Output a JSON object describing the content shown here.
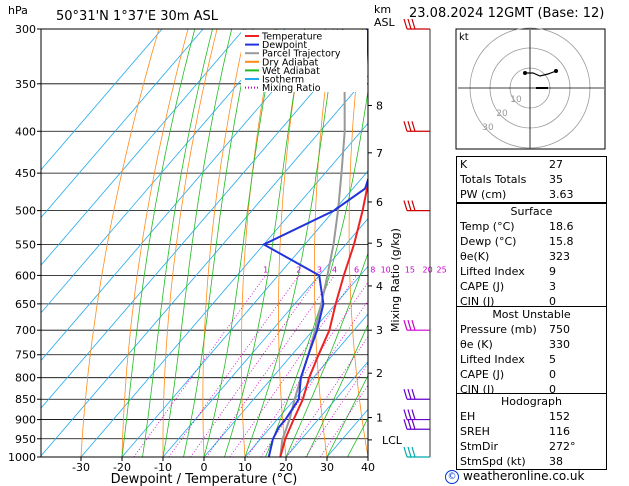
{
  "header": {
    "pressure_unit": "hPa",
    "location": "50°31'N  1°37'E  30m  ASL",
    "height_unit_line1": "km",
    "height_unit_line2": "ASL",
    "datetime": "23.08.2024  12GMT  (Base: 12)"
  },
  "legend": [
    "Temperature",
    "Dewpoint",
    "Parcel Trajectory",
    "Dry Adiabat",
    "Wet Adiabat",
    "Isotherm",
    "Mixing Ratio"
  ],
  "colors": {
    "temperature": "#ee2222",
    "dewpoint": "#2233dd",
    "parcel": "#999999",
    "dry_adiabat": "#ff8c1a",
    "wet_adiabat": "#22bb22",
    "isotherm": "#22aaee",
    "mixing_ratio": "#cc00cc",
    "wind": "#cc0000"
  },
  "chart_data": {
    "type": "skew-t",
    "xlabel": "Dewpoint / Temperature (°C)",
    "ylabel_right": "Mixing Ratio (g/kg)",
    "pressure_levels": [
      300,
      350,
      400,
      450,
      500,
      550,
      600,
      650,
      700,
      750,
      800,
      850,
      900,
      950,
      1000
    ],
    "temperature_ticks": [
      -30,
      -20,
      -10,
      0,
      10,
      20,
      30,
      40
    ],
    "height_ticks": [
      {
        "km": "8",
        "p": 372
      },
      {
        "km": "7",
        "p": 425
      },
      {
        "km": "6",
        "p": 488
      },
      {
        "km": "5",
        "p": 548
      },
      {
        "km": "4",
        "p": 618
      },
      {
        "km": "3",
        "p": 700
      },
      {
        "km": "2",
        "p": 790
      },
      {
        "km": "1",
        "p": 895
      }
    ],
    "lcl_label": "LCL",
    "lcl_pressure": 953,
    "mixing_ratio_labels": [
      {
        "text": "1",
        "w": 1
      },
      {
        "text": "2",
        "w": 2
      },
      {
        "text": "3",
        "w": 3
      },
      {
        "text": "4",
        "w": 4
      },
      {
        "text": "6",
        "w": 6
      },
      {
        "text": "8",
        "w": 8
      },
      {
        "text": "10",
        "w": 10
      },
      {
        "text": "15",
        "w": 15
      },
      {
        "text": "20",
        "w": 20
      },
      {
        "text": "25",
        "w": 25
      }
    ],
    "temperature_profile": [
      [
        1000,
        18.6
      ],
      [
        950,
        16
      ],
      [
        900,
        14
      ],
      [
        850,
        12
      ],
      [
        800,
        9
      ],
      [
        750,
        6.5
      ],
      [
        700,
        4
      ],
      [
        650,
        0
      ],
      [
        600,
        -4
      ],
      [
        550,
        -8
      ],
      [
        500,
        -13
      ],
      [
        450,
        -19
      ],
      [
        400,
        -27
      ],
      [
        350,
        -36
      ],
      [
        300,
        -46
      ]
    ],
    "dewpoint_profile": [
      [
        1000,
        15.8
      ],
      [
        950,
        13
      ],
      [
        920,
        12
      ],
      [
        900,
        12
      ],
      [
        850,
        11
      ],
      [
        800,
        7
      ],
      [
        750,
        4
      ],
      [
        700,
        1
      ],
      [
        650,
        -3
      ],
      [
        600,
        -10
      ],
      [
        550,
        -30
      ],
      [
        500,
        -20
      ],
      [
        470,
        -17
      ],
      [
        450,
        -19
      ],
      [
        400,
        -28
      ],
      [
        350,
        -38
      ],
      [
        300,
        -50
      ]
    ],
    "parcel_profile": [
      [
        1000,
        18.6
      ],
      [
        953,
        15.5
      ],
      [
        900,
        13
      ],
      [
        850,
        10
      ],
      [
        800,
        7
      ],
      [
        750,
        4
      ],
      [
        700,
        0.5
      ],
      [
        650,
        -3.5
      ],
      [
        600,
        -8
      ],
      [
        550,
        -13
      ],
      [
        500,
        -19
      ],
      [
        450,
        -26
      ],
      [
        400,
        -34
      ],
      [
        350,
        -44
      ],
      [
        300,
        -56
      ]
    ],
    "wind_barbs": [
      {
        "p": 300,
        "color": "#cc0000"
      },
      {
        "p": 400,
        "color": "#cc0000"
      },
      {
        "p": 500,
        "color": "#cc0000"
      },
      {
        "p": 700,
        "color": "#cc00cc"
      },
      {
        "p": 850,
        "color": "#6600cc"
      },
      {
        "p": 900,
        "color": "#6600cc"
      },
      {
        "p": 925,
        "color": "#6600cc"
      },
      {
        "p": 1000,
        "color": "#00aaaa"
      }
    ]
  },
  "hodograph": {
    "unit": "kt",
    "ring_labels": [
      "10",
      "20",
      "30"
    ]
  },
  "indices": {
    "k": {
      "label": "K",
      "value": "27"
    },
    "tt": {
      "label": "Totals Totals",
      "value": "35"
    },
    "pw": {
      "label": "PW (cm)",
      "value": "3.63"
    }
  },
  "surface": {
    "title": "Surface",
    "rows": [
      {
        "label": "Temp (°C)",
        "value": "18.6"
      },
      {
        "label": "Dewp (°C)",
        "value": "15.8"
      },
      {
        "label": "θe(K)",
        "value": "323"
      },
      {
        "label": "Lifted Index",
        "value": "9"
      },
      {
        "label": "CAPE (J)",
        "value": "3"
      },
      {
        "label": "CIN (J)",
        "value": "0"
      }
    ]
  },
  "most_unstable": {
    "title": "Most Unstable",
    "rows": [
      {
        "label": "Pressure (mb)",
        "value": "750"
      },
      {
        "label": "θe (K)",
        "value": "330"
      },
      {
        "label": "Lifted Index",
        "value": "5"
      },
      {
        "label": "CAPE (J)",
        "value": "0"
      },
      {
        "label": "CIN (J)",
        "value": "0"
      }
    ]
  },
  "hodo_stats": {
    "title": "Hodograph",
    "rows": [
      {
        "label": "EH",
        "value": "152"
      },
      {
        "label": "SREH",
        "value": "116"
      },
      {
        "label": "StmDir",
        "value": "272°"
      },
      {
        "label": "StmSpd (kt)",
        "value": "38"
      }
    ]
  },
  "footer": {
    "credit": "weatheronline.co.uk",
    "copyright": "©"
  }
}
